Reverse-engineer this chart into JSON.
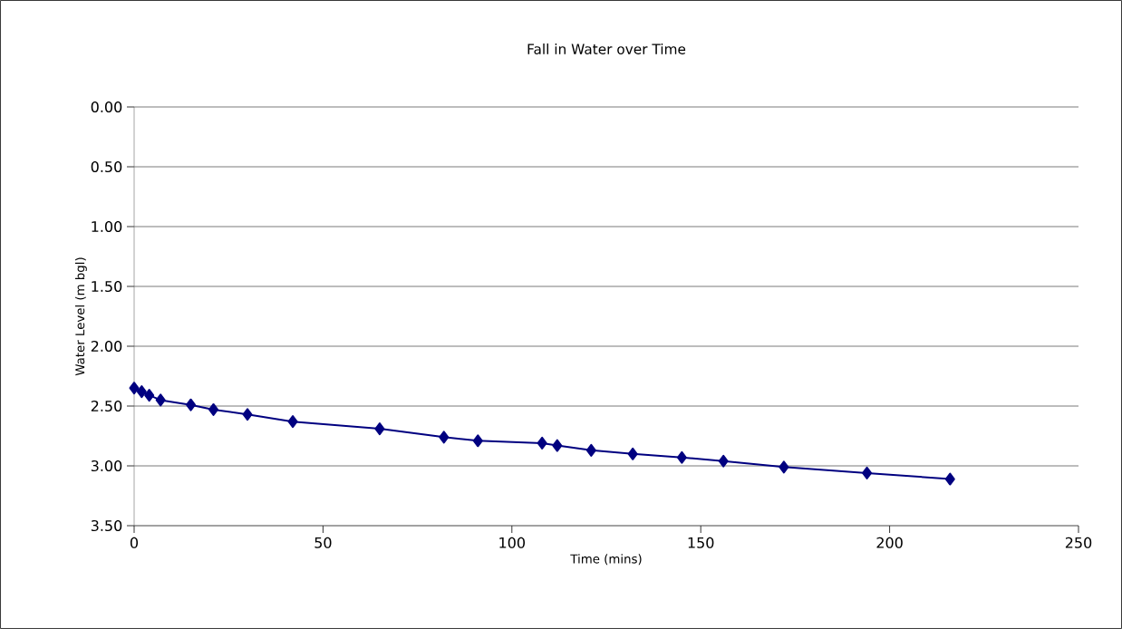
{
  "chart_data": {
    "type": "line",
    "title": "Fall in Water over Time",
    "xlabel": "Time (mins)",
    "ylabel": "Water Level (m bgl)",
    "x": [
      0,
      2,
      4,
      7,
      15,
      21,
      30,
      42,
      65,
      82,
      91,
      108,
      112,
      121,
      132,
      145,
      156,
      172,
      194,
      216
    ],
    "series": [
      {
        "color": "#000080",
        "values": [
          2.35,
          2.38,
          2.41,
          2.45,
          2.49,
          2.53,
          2.57,
          2.63,
          2.69,
          2.76,
          2.79,
          2.81,
          2.83,
          2.87,
          2.9,
          2.93,
          2.96,
          3.01,
          3.06,
          3.11
        ]
      }
    ],
    "xlim": [
      0,
      250
    ],
    "xticks": [
      0,
      50,
      100,
      150,
      200,
      250
    ],
    "ylim": [
      3.5,
      0
    ],
    "yticks": [
      {
        "value": 0,
        "label": "0.00"
      },
      {
        "value": 0.5,
        "label": "0.50"
      },
      {
        "value": 1,
        "label": "1.00"
      },
      {
        "value": 1.5,
        "label": "1.50"
      },
      {
        "value": 2,
        "label": "2.00"
      },
      {
        "value": 2.5,
        "label": "2.50"
      },
      {
        "value": 3,
        "label": "3.00"
      },
      {
        "value": 3.5,
        "label": "3.50"
      }
    ],
    "grid": "y",
    "legend": false,
    "marker": "diamond",
    "line_style": "solid"
  }
}
